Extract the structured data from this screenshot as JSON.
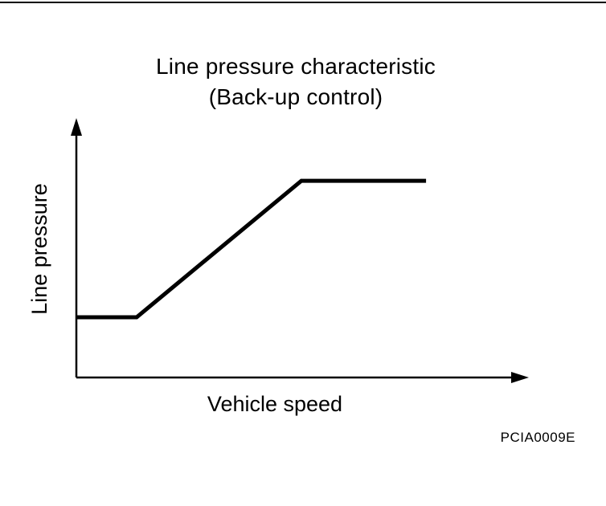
{
  "figure": {
    "title_line1": "Line pressure characteristic",
    "title_line2": "(Back-up control)",
    "ylabel": "Line pressure",
    "xlabel": "Vehicle speed",
    "figure_code": "PCIA0009E",
    "line_color": "#000000",
    "background_color": "#ffffff"
  },
  "chart_data": {
    "type": "line",
    "title": "Line pressure characteristic (Back-up control)",
    "xlabel": "Vehicle speed",
    "ylabel": "Line pressure",
    "grid": false,
    "legend": "none",
    "axis_ticks": "none (qualitative characteristic curve, axes unlabeled with arrowheads)",
    "x_range_normalized": [
      0,
      1
    ],
    "y_range_normalized": [
      0,
      1
    ],
    "series": [
      {
        "name": "Line pressure vs vehicle speed (back-up control)",
        "x": [
          0,
          0.134,
          0.5,
          0.777
        ],
        "y": [
          0.242,
          0.242,
          0.79,
          0.79
        ],
        "units": "normalized (no numeric scale shown)"
      }
    ],
    "description": "Line pressure stays flat at a low level until a threshold vehicle speed, increases linearly with speed, then saturates flat at a high level."
  }
}
